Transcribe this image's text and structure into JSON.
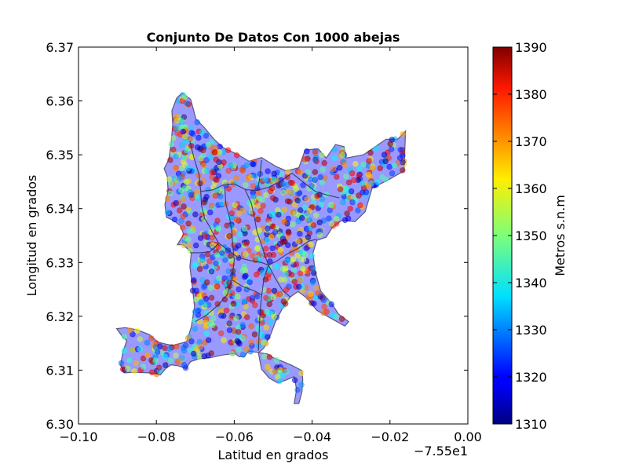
{
  "chart_data": {
    "type": "scatter",
    "title": "Conjunto De Datos Con 1000 abejas",
    "xlabel": "Latitud en grados",
    "ylabel": "Longitud en grados",
    "x_offset_label": "−7.55e1",
    "xlim": [
      -0.1,
      0.0
    ],
    "ylim": [
      6.3,
      6.37
    ],
    "x_ticks": [
      -0.1,
      -0.08,
      -0.06,
      -0.04,
      -0.02,
      0.0
    ],
    "x_tick_labels": [
      "−0.10",
      "−0.08",
      "−0.06",
      "−0.04",
      "−0.02",
      "0.00"
    ],
    "y_ticks": [
      6.3,
      6.31,
      6.32,
      6.33,
      6.34,
      6.35,
      6.36,
      6.37
    ],
    "y_tick_labels": [
      "6.30",
      "6.31",
      "6.32",
      "6.33",
      "6.34",
      "6.35",
      "6.36",
      "6.37"
    ],
    "grid": false,
    "region_fill_color": "#8080ff",
    "region_outline_color": "#303060",
    "colormap": "jet",
    "colorbar": {
      "label": "Metros s.n.m",
      "range": [
        1310,
        1390
      ],
      "ticks": [
        1310,
        1320,
        1330,
        1340,
        1350,
        1360,
        1370,
        1380,
        1390
      ],
      "tick_labels": [
        "1310",
        "1320",
        "1330",
        "1340",
        "1350",
        "1360",
        "1370",
        "1380",
        "1390"
      ]
    },
    "point_count": 1000,
    "region_outline": [
      [
        -0.0734,
        6.3615
      ],
      [
        -0.0712,
        6.3603
      ],
      [
        -0.0698,
        6.3566
      ],
      [
        -0.0676,
        6.355
      ],
      [
        -0.0652,
        6.3529
      ],
      [
        -0.0628,
        6.3513
      ],
      [
        -0.059,
        6.35
      ],
      [
        -0.0562,
        6.3488
      ],
      [
        -0.053,
        6.3495
      ],
      [
        -0.0492,
        6.3478
      ],
      [
        -0.0466,
        6.347
      ],
      [
        -0.0434,
        6.3476
      ],
      [
        -0.0418,
        6.3509
      ],
      [
        -0.0384,
        6.3511
      ],
      [
        -0.0364,
        6.3494
      ],
      [
        -0.034,
        6.3519
      ],
      [
        -0.0318,
        6.3515
      ],
      [
        -0.0312,
        6.3494
      ],
      [
        -0.0268,
        6.35
      ],
      [
        -0.0242,
        6.3513
      ],
      [
        -0.021,
        6.3529
      ],
      [
        -0.018,
        6.3529
      ],
      [
        -0.016,
        6.3544
      ],
      [
        -0.0164,
        6.347
      ],
      [
        -0.02,
        6.3455
      ],
      [
        -0.0246,
        6.3438
      ],
      [
        -0.0264,
        6.3394
      ],
      [
        -0.029,
        6.3376
      ],
      [
        -0.0324,
        6.3378
      ],
      [
        -0.0348,
        6.3365
      ],
      [
        -0.0364,
        6.3347
      ],
      [
        -0.0388,
        6.3341
      ],
      [
        -0.0398,
        6.3317
      ],
      [
        -0.0392,
        6.3283
      ],
      [
        -0.0378,
        6.3247
      ],
      [
        -0.0348,
        6.3222
      ],
      [
        -0.0332,
        6.3204
      ],
      [
        -0.0306,
        6.319
      ],
      [
        -0.0316,
        6.3182
      ],
      [
        -0.0354,
        6.3197
      ],
      [
        -0.0388,
        6.3211
      ],
      [
        -0.0414,
        6.3234
      ],
      [
        -0.0436,
        6.3246
      ],
      [
        -0.0456,
        6.3236
      ],
      [
        -0.0476,
        6.3215
      ],
      [
        -0.0494,
        6.319
      ],
      [
        -0.0506,
        6.3167
      ],
      [
        -0.0524,
        6.3141
      ],
      [
        -0.0538,
        6.3132
      ],
      [
        -0.053,
        6.3102
      ],
      [
        -0.051,
        6.3085
      ],
      [
        -0.0488,
        6.3076
      ],
      [
        -0.0466,
        6.3082
      ],
      [
        -0.0446,
        6.3088
      ],
      [
        -0.044,
        6.3064
      ],
      [
        -0.0446,
        6.3038
      ],
      [
        -0.0434,
        6.3038
      ],
      [
        -0.0426,
        6.306
      ],
      [
        -0.0424,
        6.3082
      ],
      [
        -0.0426,
        6.3099
      ],
      [
        -0.0452,
        6.3109
      ],
      [
        -0.0482,
        6.3118
      ],
      [
        -0.05,
        6.3123
      ],
      [
        -0.0514,
        6.313
      ],
      [
        -0.054,
        6.3133
      ],
      [
        -0.0564,
        6.3135
      ],
      [
        -0.0574,
        6.3125
      ],
      [
        -0.0588,
        6.3125
      ],
      [
        -0.0598,
        6.3131
      ],
      [
        -0.063,
        6.3128
      ],
      [
        -0.0662,
        6.3123
      ],
      [
        -0.069,
        6.3121
      ],
      [
        -0.0712,
        6.3116
      ],
      [
        -0.0724,
        6.3103
      ],
      [
        -0.0744,
        6.3108
      ],
      [
        -0.0762,
        6.311
      ],
      [
        -0.0776,
        6.3103
      ],
      [
        -0.079,
        6.3091
      ],
      [
        -0.082,
        6.3095
      ],
      [
        -0.0854,
        6.3096
      ],
      [
        -0.0882,
        6.3095
      ],
      [
        -0.0892,
        6.3109
      ],
      [
        -0.0886,
        6.3133
      ],
      [
        -0.0876,
        6.3155
      ],
      [
        -0.0886,
        6.3161
      ],
      [
        -0.0902,
        6.3177
      ],
      [
        -0.088,
        6.3179
      ],
      [
        -0.085,
        6.3175
      ],
      [
        -0.0818,
        6.3166
      ],
      [
        -0.0796,
        6.3152
      ],
      [
        -0.0774,
        6.3148
      ],
      [
        -0.0758,
        6.3146
      ],
      [
        -0.0736,
        6.315
      ],
      [
        -0.0722,
        6.3153
      ],
      [
        -0.071,
        6.3181
      ],
      [
        -0.0702,
        6.3218
      ],
      [
        -0.0708,
        6.3258
      ],
      [
        -0.0714,
        6.3292
      ],
      [
        -0.071,
        6.3319
      ],
      [
        -0.0732,
        6.3333
      ],
      [
        -0.0746,
        6.3333
      ],
      [
        -0.073,
        6.3352
      ],
      [
        -0.0738,
        6.3368
      ],
      [
        -0.0756,
        6.3378
      ],
      [
        -0.0774,
        6.3384
      ],
      [
        -0.0778,
        6.3408
      ],
      [
        -0.077,
        6.3432
      ],
      [
        -0.0772,
        6.346
      ],
      [
        -0.078,
        6.3474
      ],
      [
        -0.0768,
        6.3492
      ],
      [
        -0.0762,
        6.3522
      ],
      [
        -0.0758,
        6.3555
      ],
      [
        -0.076,
        6.3582
      ],
      [
        -0.0748,
        6.3605
      ]
    ],
    "district_lines": [
      [
        [
          -0.0714,
          6.3525
        ],
        [
          -0.0704,
          6.3496
        ],
        [
          -0.069,
          6.3462
        ],
        [
          -0.0686,
          6.3432
        ]
      ],
      [
        [
          -0.0686,
          6.3432
        ],
        [
          -0.0654,
          6.3435
        ],
        [
          -0.0628,
          6.3444
        ],
        [
          -0.06,
          6.3446
        ],
        [
          -0.057,
          6.3435
        ],
        [
          -0.054,
          6.3434
        ],
        [
          -0.051,
          6.344
        ],
        [
          -0.0478,
          6.3452
        ],
        [
          -0.0452,
          6.3466
        ]
      ],
      [
        [
          -0.0686,
          6.3432
        ],
        [
          -0.0684,
          6.3406
        ],
        [
          -0.0676,
          6.3382
        ],
        [
          -0.0666,
          6.337
        ],
        [
          -0.0652,
          6.3351
        ],
        [
          -0.064,
          6.3336
        ],
        [
          -0.0612,
          6.3321
        ],
        [
          -0.059,
          6.3309
        ],
        [
          -0.0556,
          6.3303
        ],
        [
          -0.053,
          6.33
        ],
        [
          -0.0512,
          6.3295
        ]
      ],
      [
        [
          -0.0624,
          6.344
        ],
        [
          -0.0622,
          6.341
        ],
        [
          -0.0612,
          6.3383
        ],
        [
          -0.0606,
          6.3358
        ],
        [
          -0.0604,
          6.3333
        ]
      ],
      [
        [
          -0.0572,
          6.3435
        ],
        [
          -0.0556,
          6.341
        ],
        [
          -0.0548,
          6.3383
        ],
        [
          -0.0542,
          6.3358
        ],
        [
          -0.053,
          6.3333
        ],
        [
          -0.052,
          6.331
        ],
        [
          -0.0512,
          6.3295
        ]
      ],
      [
        [
          -0.0512,
          6.3295
        ],
        [
          -0.049,
          6.3303
        ],
        [
          -0.0464,
          6.3316
        ],
        [
          -0.0436,
          6.3326
        ],
        [
          -0.0408,
          6.334
        ],
        [
          -0.0388,
          6.3343
        ]
      ],
      [
        [
          -0.0512,
          6.3295
        ],
        [
          -0.0524,
          6.3269
        ],
        [
          -0.053,
          6.3236
        ],
        [
          -0.0534,
          6.3203
        ],
        [
          -0.0536,
          6.3169
        ],
        [
          -0.0538,
          6.3136
        ]
      ],
      [
        [
          -0.0512,
          6.3295
        ],
        [
          -0.0494,
          6.327
        ],
        [
          -0.0476,
          6.3248
        ],
        [
          -0.0456,
          6.3236
        ]
      ],
      [
        [
          -0.0604,
          6.3333
        ],
        [
          -0.06,
          6.3304
        ],
        [
          -0.0606,
          6.3268
        ],
        [
          -0.0618,
          6.324
        ],
        [
          -0.064,
          6.3222
        ],
        [
          -0.067,
          6.3203
        ],
        [
          -0.07,
          6.319
        ]
      ],
      [
        [
          -0.0606,
          6.3268
        ],
        [
          -0.058,
          6.3256
        ],
        [
          -0.0548,
          6.3247
        ],
        [
          -0.053,
          6.324
        ]
      ],
      [
        [
          -0.0714,
          6.3318
        ],
        [
          -0.0688,
          6.3318
        ],
        [
          -0.0662,
          6.332
        ],
        [
          -0.064,
          6.3336
        ]
      ],
      [
        [
          -0.054,
          6.3434
        ],
        [
          -0.0534,
          6.346
        ],
        [
          -0.053,
          6.349
        ]
      ],
      [
        [
          -0.0452,
          6.3466
        ],
        [
          -0.0424,
          6.345
        ],
        [
          -0.0392,
          6.3432
        ],
        [
          -0.036,
          6.3425
        ],
        [
          -0.033,
          6.342
        ]
      ]
    ]
  }
}
